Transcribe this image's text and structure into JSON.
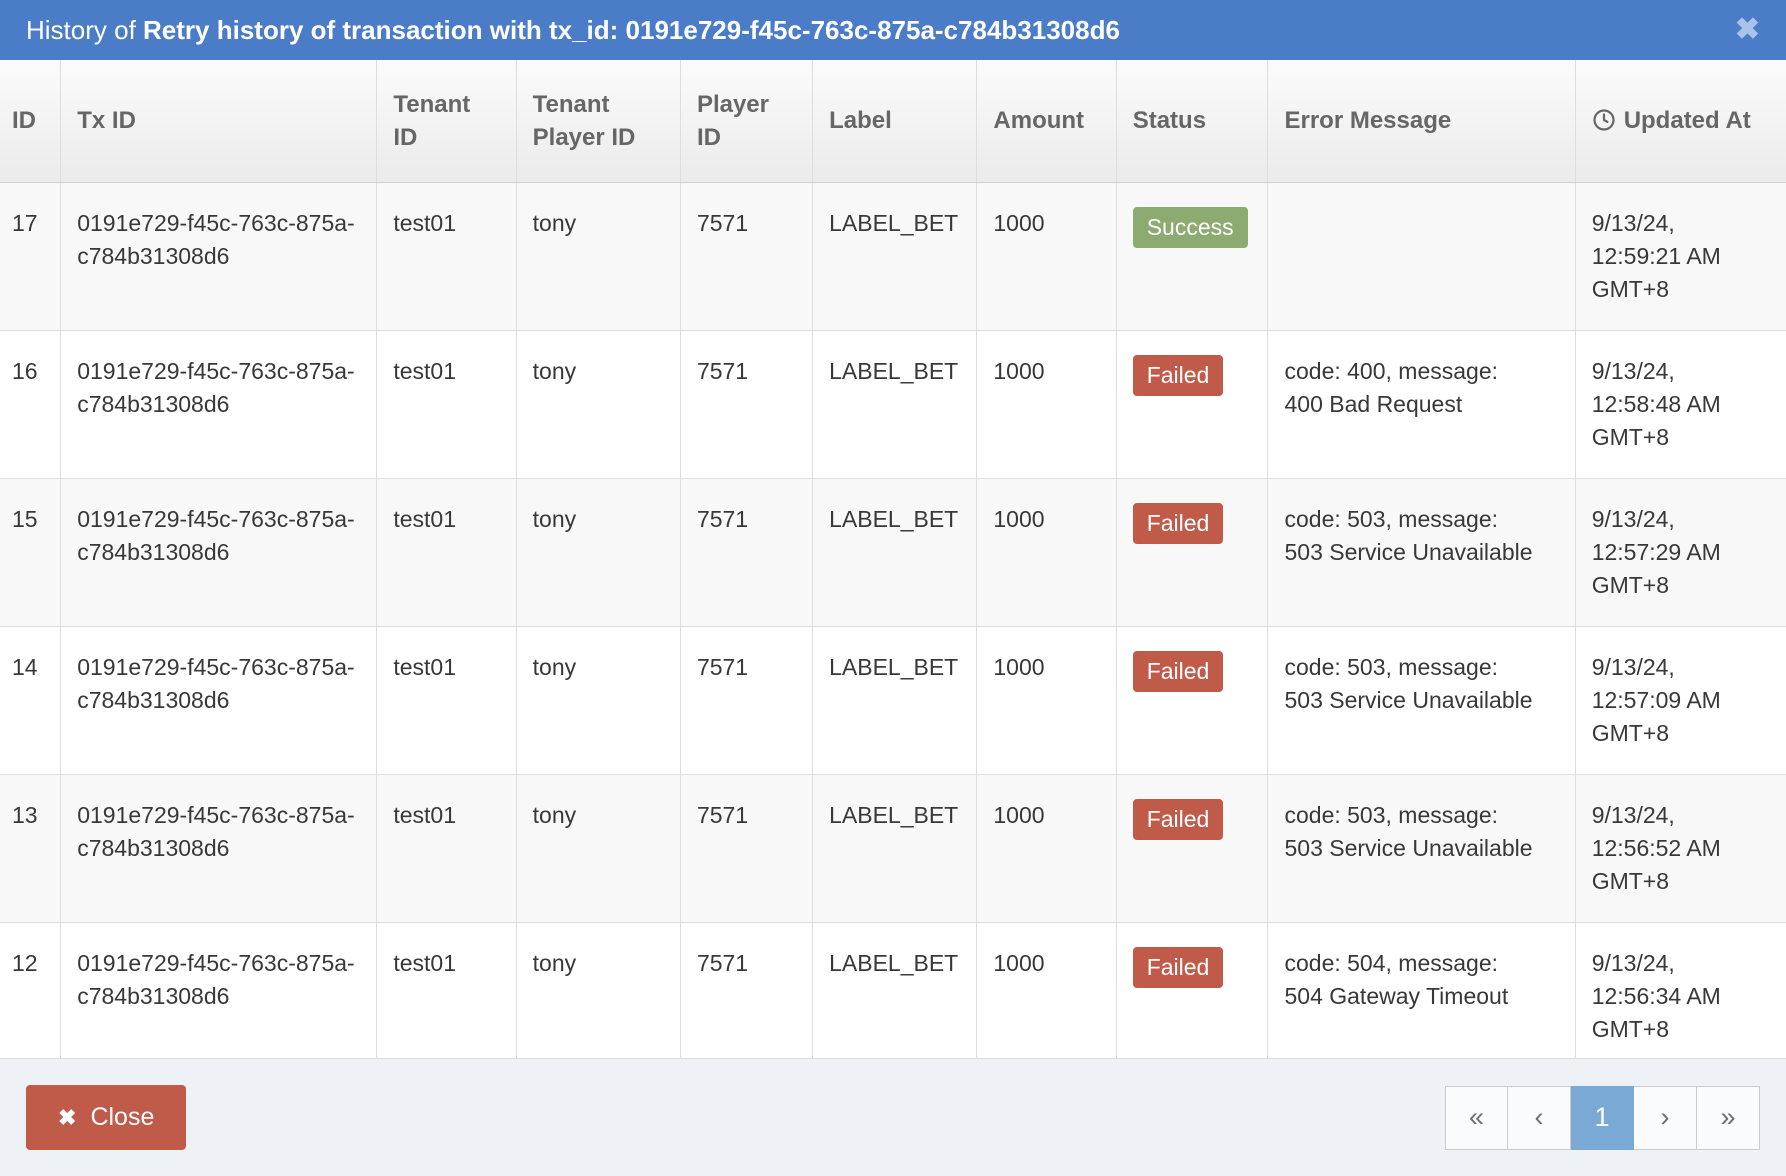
{
  "modal": {
    "title_prefix": "History of ",
    "title_emphasis": "Retry history of transaction with tx_id: 0191e729-f45c-763c-875a-c784b31308d6",
    "close_icon_glyph": "✖"
  },
  "table": {
    "columns": [
      {
        "key": "id",
        "label": "ID"
      },
      {
        "key": "tx_id",
        "label": "Tx ID"
      },
      {
        "key": "tenant_id",
        "label": "Tenant ID"
      },
      {
        "key": "tenant_player_id",
        "label": "Tenant Player ID"
      },
      {
        "key": "player_id",
        "label": "Player ID"
      },
      {
        "key": "label",
        "label": "Label"
      },
      {
        "key": "amount",
        "label": "Amount"
      },
      {
        "key": "status",
        "label": "Status"
      },
      {
        "key": "error_message",
        "label": "Error Message"
      },
      {
        "key": "updated_at",
        "label": "Updated At",
        "icon": "clock-icon"
      }
    ],
    "rows": [
      {
        "id": "17",
        "tx_id": "0191e729-f45c-763c-875a-c784b31308d6",
        "tenant_id": "test01",
        "tenant_player_id": "tony",
        "player_id": "7571",
        "label": "LABEL_BET",
        "amount": "1000",
        "status": "Success",
        "error_message": "",
        "updated_at": "9/13/24, 12:59:21 AM GMT+8"
      },
      {
        "id": "16",
        "tx_id": "0191e729-f45c-763c-875a-c784b31308d6",
        "tenant_id": "test01",
        "tenant_player_id": "tony",
        "player_id": "7571",
        "label": "LABEL_BET",
        "amount": "1000",
        "status": "Failed",
        "error_message": "code: 400, message: 400 Bad Request",
        "updated_at": "9/13/24, 12:58:48 AM GMT+8"
      },
      {
        "id": "15",
        "tx_id": "0191e729-f45c-763c-875a-c784b31308d6",
        "tenant_id": "test01",
        "tenant_player_id": "tony",
        "player_id": "7571",
        "label": "LABEL_BET",
        "amount": "1000",
        "status": "Failed",
        "error_message": "code: 503, message: 503 Service Unavailable",
        "updated_at": "9/13/24, 12:57:29 AM GMT+8"
      },
      {
        "id": "14",
        "tx_id": "0191e729-f45c-763c-875a-c784b31308d6",
        "tenant_id": "test01",
        "tenant_player_id": "tony",
        "player_id": "7571",
        "label": "LABEL_BET",
        "amount": "1000",
        "status": "Failed",
        "error_message": "code: 503, message: 503 Service Unavailable",
        "updated_at": "9/13/24, 12:57:09 AM GMT+8"
      },
      {
        "id": "13",
        "tx_id": "0191e729-f45c-763c-875a-c784b31308d6",
        "tenant_id": "test01",
        "tenant_player_id": "tony",
        "player_id": "7571",
        "label": "LABEL_BET",
        "amount": "1000",
        "status": "Failed",
        "error_message": "code: 503, message: 503 Service Unavailable",
        "updated_at": "9/13/24, 12:56:52 AM GMT+8"
      },
      {
        "id": "12",
        "tx_id": "0191e729-f45c-763c-875a-c784b31308d6",
        "tenant_id": "test01",
        "tenant_player_id": "tony",
        "player_id": "7571",
        "label": "LABEL_BET",
        "amount": "1000",
        "status": "Failed",
        "error_message": "code: 504, message: 504 Gateway Timeout",
        "updated_at": "9/13/24, 12:56:34 AM GMT+8"
      }
    ]
  },
  "footer": {
    "close_button_label": "Close",
    "close_button_icon_glyph": "✖",
    "pagination": [
      {
        "name": "first-page-button",
        "label": "«",
        "active": false
      },
      {
        "name": "prev-page-button",
        "label": "‹",
        "active": false
      },
      {
        "name": "page-1-button",
        "label": "1",
        "active": true
      },
      {
        "name": "next-page-button",
        "label": "›",
        "active": false
      },
      {
        "name": "last-page-button",
        "label": "»",
        "active": false
      }
    ]
  },
  "colors": {
    "titlebar_blue": "#4a7cc7",
    "success_green": "#8cab70",
    "failed_red": "#c05b4a",
    "close_button_red": "#c05b4a",
    "active_page_blue": "#7aa9d6",
    "footer_background": "#eef1f6"
  }
}
